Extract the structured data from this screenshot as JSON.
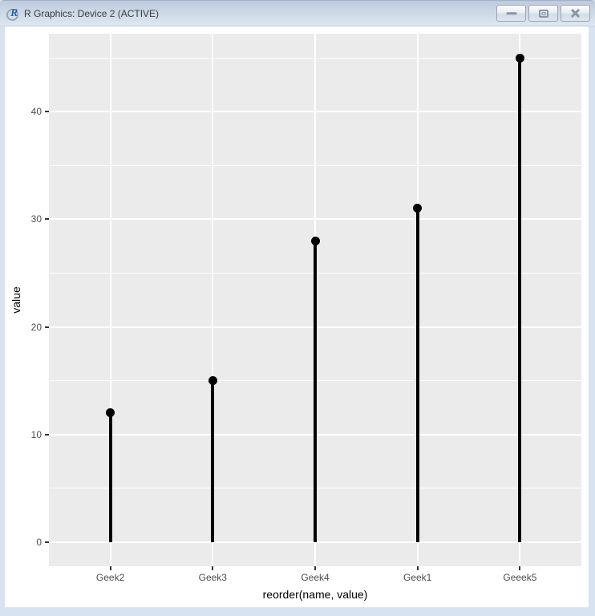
{
  "window": {
    "title": "R Graphics: Device 2 (ACTIVE)",
    "icon": "R logo",
    "buttons": {
      "minimize": "minimize",
      "maximize": "maximize",
      "close": "close"
    }
  },
  "chart_data": {
    "type": "lollipop",
    "categories": [
      "Geek2",
      "Geek3",
      "Geek4",
      "Geek1",
      "Geeek5"
    ],
    "values": [
      12,
      15,
      28,
      31,
      45
    ],
    "title": "",
    "xlabel": "reorder(name, value)",
    "ylabel": "value",
    "ylim": [
      -2.25,
      47.25
    ],
    "y_major_breaks": [
      0,
      10,
      20,
      30,
      40
    ],
    "y_minor_breaks": [
      5,
      15,
      25,
      35,
      45
    ],
    "x_expansion": 0.6,
    "legend": "none",
    "grid": "on",
    "colors": {
      "panel_bg": "#EBEBEB",
      "grid": "#FFFFFF",
      "stem": "#000000",
      "point": "#000000",
      "tick_label": "#4D4D4D",
      "tick_mark": "#333333",
      "axis_title": "#000000"
    }
  }
}
